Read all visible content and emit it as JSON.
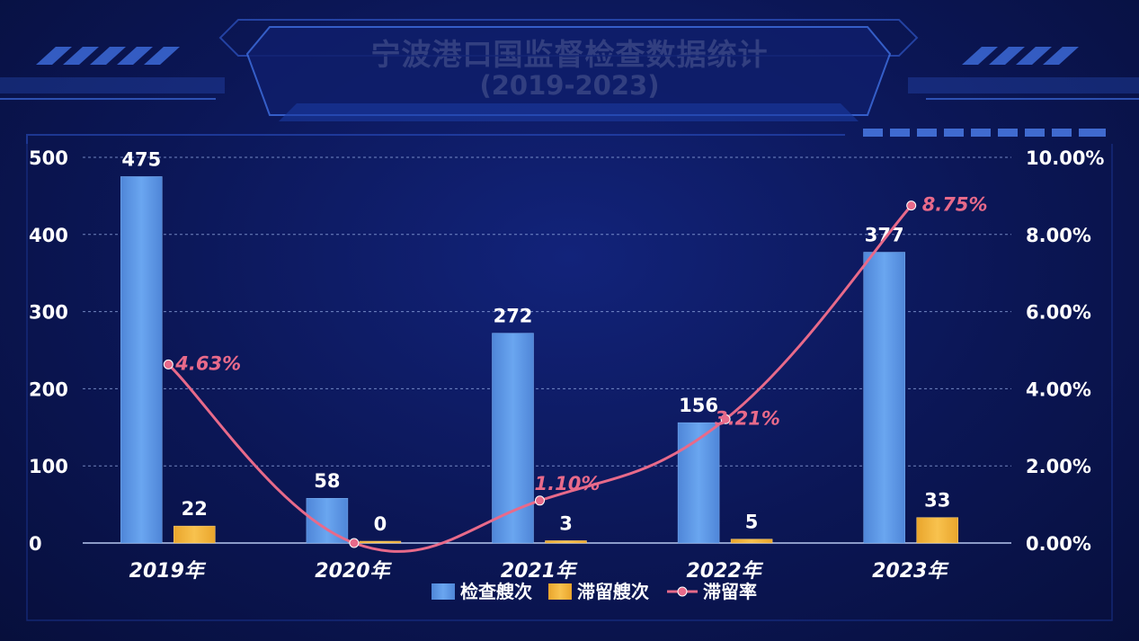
{
  "title": "宁波港口国监督检查数据统计",
  "subtitle": "(2019-2023)",
  "colors": {
    "bar_primary": "#5b97e6",
    "bar_secondary": "#f2b33a",
    "line": "#e86a8a",
    "text": "#ffffff",
    "background": "#0b1655"
  },
  "chart_data": {
    "type": "bar",
    "categories": [
      "2019年",
      "2020年",
      "2021年",
      "2022年",
      "2023年"
    ],
    "series": [
      {
        "name": "检查艘次",
        "type": "bar",
        "axis": "left",
        "values": [
          475,
          58,
          272,
          156,
          377
        ]
      },
      {
        "name": "滞留艘次",
        "type": "bar",
        "axis": "left",
        "values": [
          22,
          0,
          3,
          5,
          33
        ]
      },
      {
        "name": "滞留率",
        "type": "line",
        "axis": "right",
        "values": [
          4.63,
          0,
          1.1,
          3.21,
          8.75
        ],
        "labels": [
          "4.63%",
          "",
          "1.10%",
          "3.21%",
          "8.75%"
        ]
      }
    ],
    "y_left": {
      "min": 0,
      "max": 500,
      "ticks": [
        "0",
        "100",
        "200",
        "300",
        "400",
        "500"
      ],
      "tick_values": [
        0,
        100,
        200,
        300,
        400,
        500
      ]
    },
    "y_right": {
      "min": 0,
      "max": 10,
      "ticks": [
        "0.00%",
        "2.00%",
        "4.00%",
        "6.00%",
        "8.00%",
        "10.00%"
      ],
      "tick_values": [
        0,
        2,
        4,
        6,
        8,
        10
      ]
    },
    "grid": true,
    "legend_position": "bottom"
  }
}
